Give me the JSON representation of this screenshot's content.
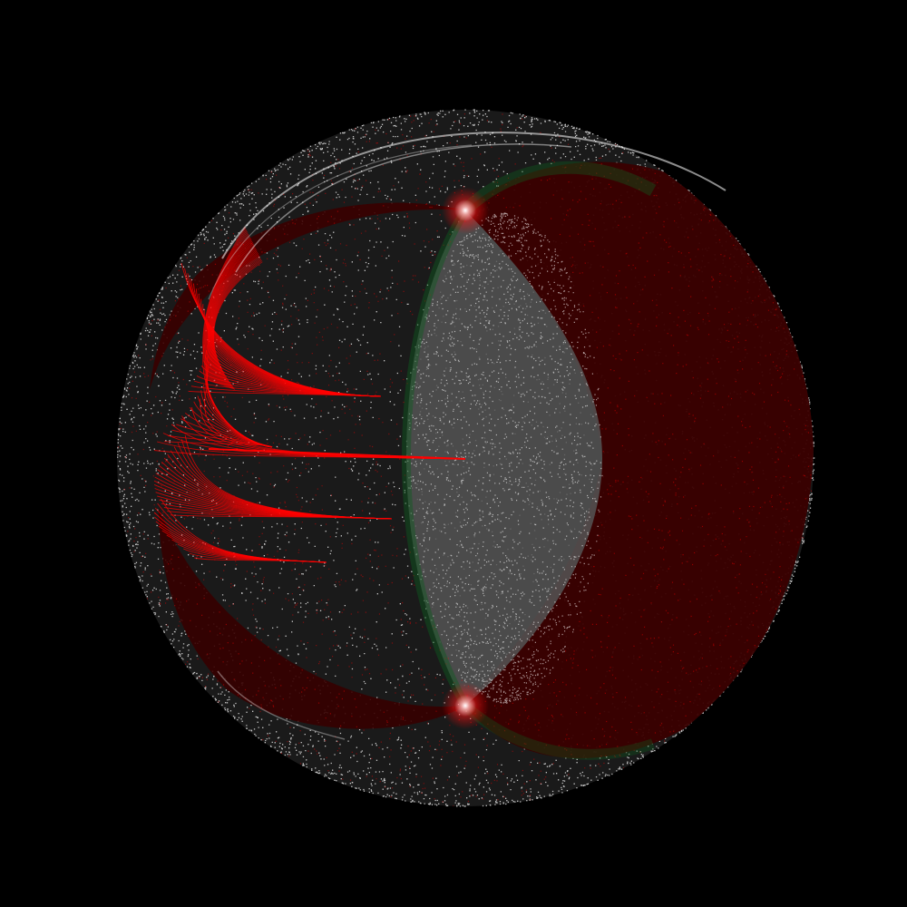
{
  "artwork": {
    "background_color": "#000000",
    "colors": {
      "sphere_dots": "#ffffff",
      "red_strands": "#ff0000",
      "dark_red_fill": "#8b0000",
      "green_shading": "#0e5a1e"
    },
    "motifs": [
      "white-dotted-sphere",
      "white-orbit-arcs",
      "dark-red-crescent",
      "red-swirl-strands",
      "green-lens-edge",
      "bright-pole-glints"
    ]
  }
}
